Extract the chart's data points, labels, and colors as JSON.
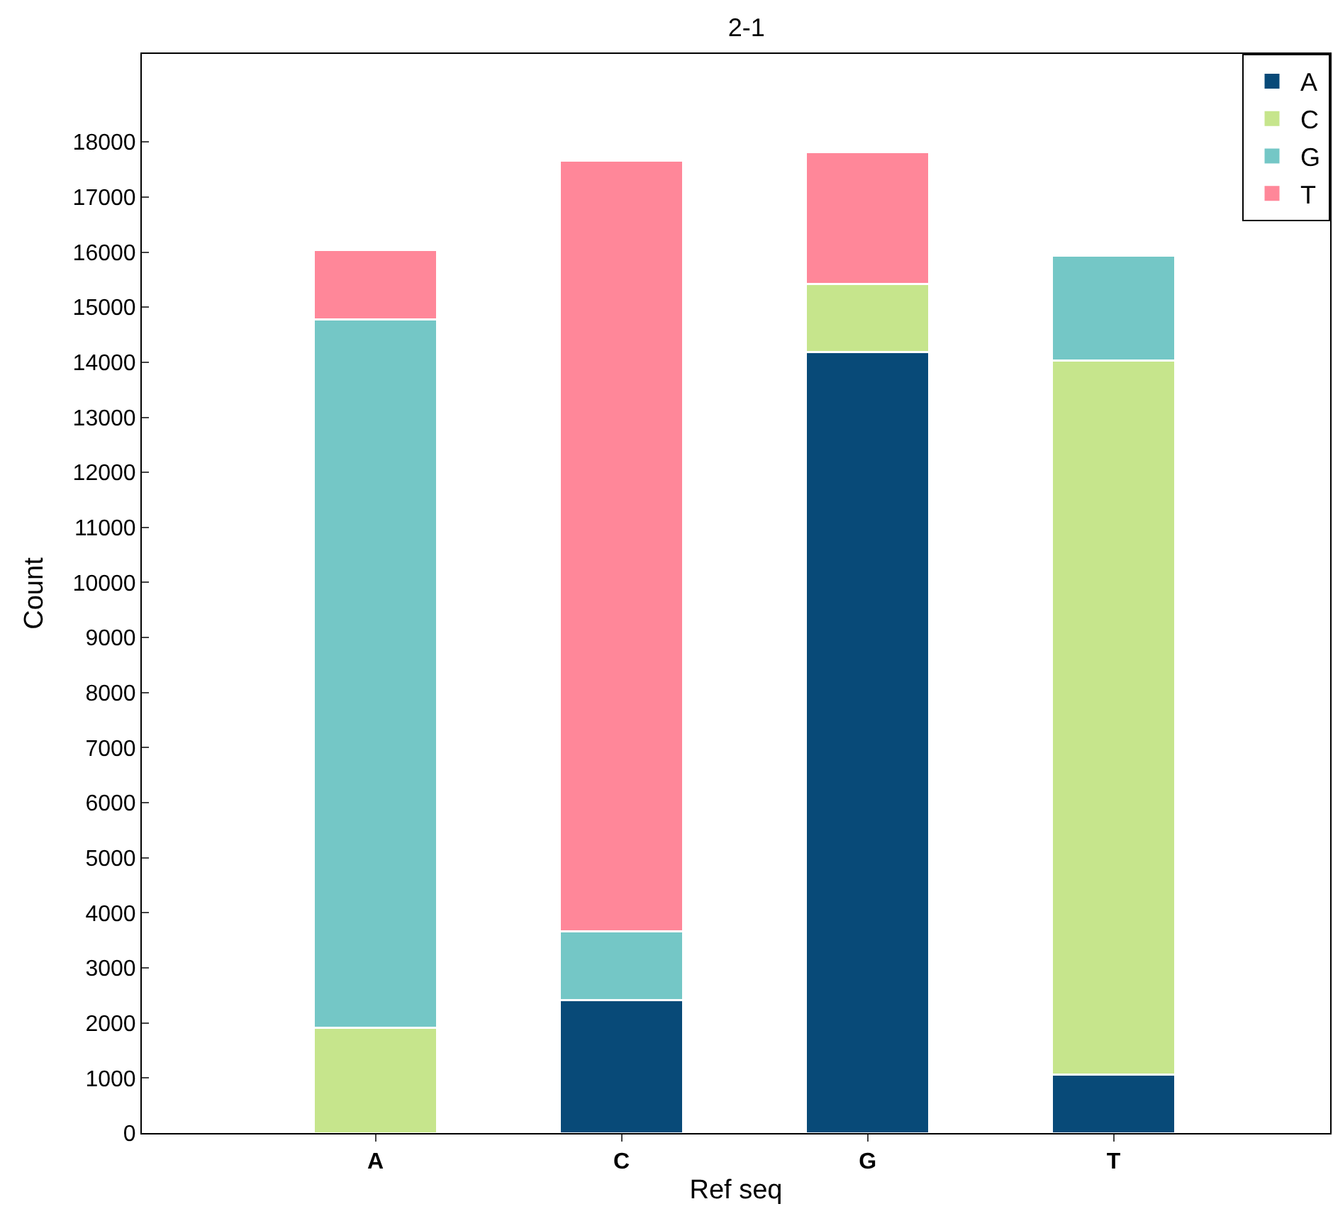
{
  "chart_data": {
    "type": "bar",
    "title": "2-1",
    "xlabel": "Ref seq",
    "ylabel": "Count",
    "categories": [
      "A",
      "C",
      "G",
      "T"
    ],
    "stacked": true,
    "series": [
      {
        "name": "A",
        "color": "#084a78",
        "values": [
          null,
          2420,
          14180,
          1060
        ]
      },
      {
        "name": "C",
        "color": "#c6e58c",
        "values": [
          1910,
          null,
          1240,
          12970
        ]
      },
      {
        "name": "G",
        "color": "#74c7c6",
        "values": [
          12870,
          1240,
          null,
          1910
        ]
      },
      {
        "name": "T",
        "color": "#ff8799",
        "values": [
          1260,
          14000,
          2400,
          null
        ]
      }
    ],
    "ylim": [
      0,
      19600
    ],
    "yticks": [
      0,
      1000,
      2000,
      3000,
      4000,
      5000,
      6000,
      7000,
      8000,
      9000,
      10000,
      11000,
      12000,
      13000,
      14000,
      15000,
      16000,
      17000,
      18000
    ],
    "legend": "top right"
  }
}
